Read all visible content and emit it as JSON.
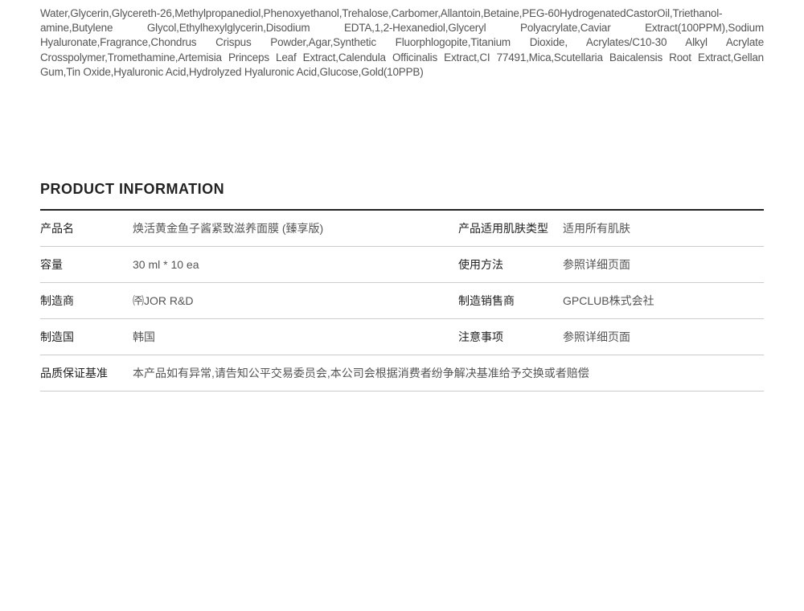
{
  "ingredients_text": "Water,Glycerin,Glycereth-26,Methylpropanediol,Phenoxyethanol,Trehalose,Carbomer,Allantoin,Betaine,PEG-60HydrogenatedCastorOil,Triethanol-amine,Butylene Glycol,Ethylhexylglycerin,Disodium EDTA,1,2-Hexanediol,Glyceryl Polyacrylate,Caviar Extract(100PPM),Sodium Hyaluronate,Fragrance,Chondrus Crispus Powder,Agar,Synthetic Fluorphlogopite,Titanium Dioxide, Acrylates/C10-30 Alkyl Acrylate Crosspolymer,Tromethamine,Artemisia Princeps Leaf Extract,Calendula Officinalis Extract,CI 77491,Mica,Scutellaria Baicalensis Root Extract,Gellan Gum,Tin Oxide,Hyaluronic Acid,Hydrolyzed Hyaluronic Acid,Glucose,Gold(10PPB)",
  "section_title": "PRODUCT INFORMATION",
  "info": {
    "rows": [
      {
        "label1": "产品名",
        "value1": "焕活黄金鱼子酱紧致滋养面膜 (臻享版)",
        "label2": "产品适用肌肤类型",
        "value2": "适用所有肌肤"
      },
      {
        "label1": "容量",
        "value1": "30 ml * 10 ea",
        "label2": "使用方法",
        "value2": "参照详细页面"
      },
      {
        "label1": "制造商",
        "value1": "㈜JOR R&D",
        "label2": "制造销售商",
        "value2": "GPCLUB株式会社"
      },
      {
        "label1": "制造国",
        "value1": "韩国",
        "label2": "注意事项",
        "value2": "参照详细页面"
      }
    ],
    "full_row": {
      "label": "品质保证基准",
      "value": "本产品如有异常,请告知公平交易委员会,本公司会根据消费者纷争解决基准给予交换或者赔偿"
    }
  }
}
